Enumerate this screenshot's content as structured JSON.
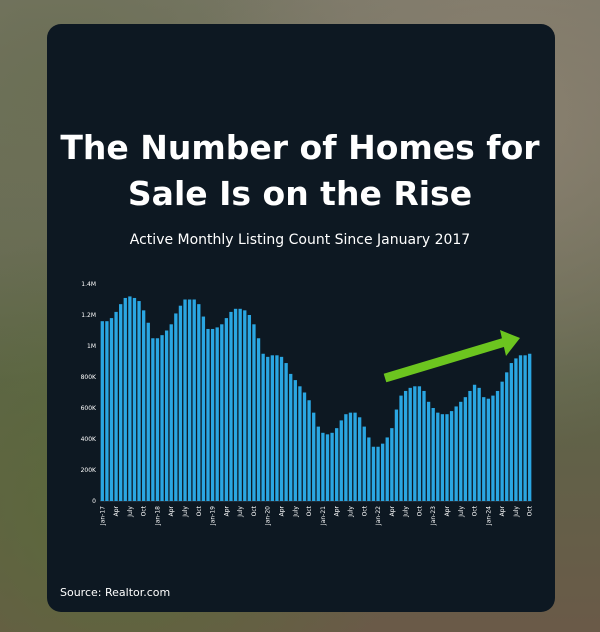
{
  "chart_data": {
    "type": "bar",
    "title": "The Number of Homes for Sale Is on the Rise",
    "subtitle": "Active Monthly Listing Count Since January 2017",
    "source": "Source: Realtor.com",
    "color": "#2aa6e2",
    "grid": false,
    "categories": [
      "Jan-17",
      null,
      null,
      "Apr",
      null,
      null,
      "July",
      null,
      null,
      "Oct",
      null,
      null,
      "Jan-18",
      null,
      null,
      "Apr",
      null,
      null,
      "July",
      null,
      null,
      "Oct",
      null,
      null,
      "Jan-19",
      null,
      null,
      "Apr",
      null,
      null,
      "July",
      null,
      null,
      "Oct",
      null,
      null,
      "Jan-20",
      null,
      null,
      "Apr",
      null,
      null,
      "July",
      null,
      null,
      "Oct",
      null,
      null,
      "Jan-21",
      null,
      null,
      "Apr",
      null,
      null,
      "July",
      null,
      null,
      "Oct",
      null,
      null,
      "Jan-22",
      null,
      null,
      "Apr",
      null,
      null,
      "July",
      null,
      null,
      "Oct",
      null,
      null,
      "Jan-23",
      null,
      null,
      "Apr",
      null,
      null,
      "July",
      null,
      null,
      "Oct",
      null,
      null,
      "Jan-24",
      null,
      null,
      "Apr",
      null,
      null,
      "July",
      null,
      null,
      "Oct"
    ],
    "values": [
      1160000,
      1160000,
      1180000,
      1220000,
      1270000,
      1310000,
      1320000,
      1310000,
      1290000,
      1230000,
      1150000,
      1050000,
      1050000,
      1070000,
      1100000,
      1140000,
      1210000,
      1260000,
      1300000,
      1300000,
      1300000,
      1270000,
      1190000,
      1110000,
      1110000,
      1120000,
      1140000,
      1180000,
      1220000,
      1240000,
      1240000,
      1230000,
      1200000,
      1140000,
      1050000,
      950000,
      930000,
      940000,
      940000,
      930000,
      890000,
      820000,
      780000,
      740000,
      700000,
      650000,
      570000,
      480000,
      440000,
      430000,
      440000,
      470000,
      520000,
      560000,
      570000,
      570000,
      540000,
      480000,
      410000,
      350000,
      350000,
      370000,
      410000,
      470000,
      590000,
      680000,
      710000,
      730000,
      740000,
      740000,
      710000,
      640000,
      600000,
      570000,
      560000,
      560000,
      580000,
      610000,
      640000,
      670000,
      710000,
      750000,
      730000,
      670000,
      660000,
      680000,
      710000,
      770000,
      830000,
      890000,
      920000,
      940000,
      940000,
      950000
    ],
    "ylim": [
      0,
      1400000
    ],
    "yticks": [
      0,
      {
        "value": 200000,
        "label": "200K"
      },
      {
        "value": 400000,
        "label": "400K"
      },
      {
        "value": 600000,
        "label": "600K"
      },
      {
        "value": 800000,
        "label": "800K"
      },
      {
        "value": 1000000,
        "label": "1M"
      },
      {
        "value": 1200000,
        "label": "1.2M"
      },
      {
        "value": 1400000,
        "label": "1.4M"
      }
    ]
  }
}
